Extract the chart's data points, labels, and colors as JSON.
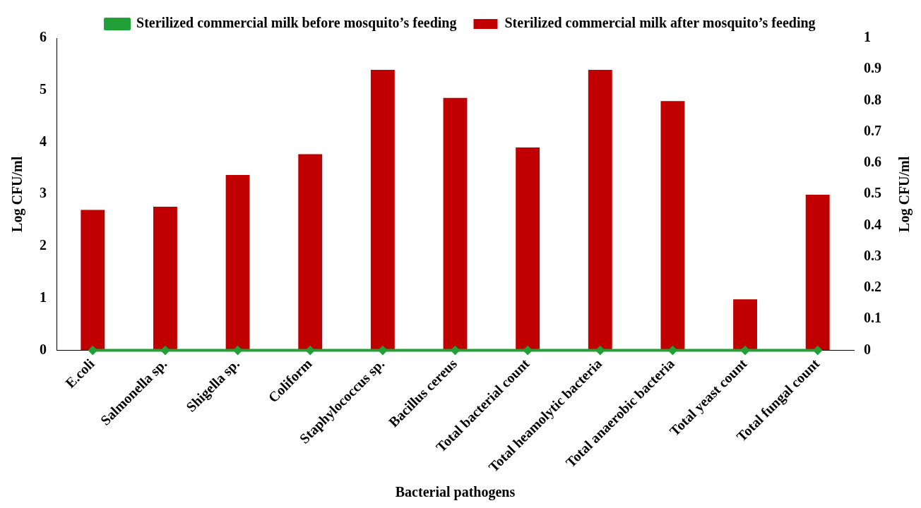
{
  "chart_data": {
    "type": "bar",
    "xlabel": "Bacterial pathogens",
    "ylabel": "Log CFU/ml",
    "y2label": "Log CFU/ml",
    "categories": [
      "E.coli",
      "Salmonella sp.",
      "Shigella sp.",
      "Coliform",
      "Staphylococcus sp.",
      "Bacillus cereus",
      "Total bacterial count",
      "Total heamolytic bacteria",
      "Total anaerobic bacteria",
      "Total yeast count",
      "Total fungal count"
    ],
    "series": [
      {
        "name": "Sterilized commercial milk after mosquito’s feeding",
        "color": "#c00000",
        "values": [
          2.7,
          2.76,
          3.37,
          3.77,
          5.39,
          4.85,
          3.9,
          5.39,
          4.79,
          0.98,
          2.99
        ]
      },
      {
        "name": "Sterilized commercial milk before mosquito’s feeding",
        "type": "line",
        "axis": "y2",
        "color": "#22a038",
        "marker": "diamond",
        "values": [
          0,
          0,
          0,
          0,
          0,
          0,
          0,
          0,
          0,
          0,
          0
        ]
      }
    ],
    "ylim": [
      0,
      6
    ],
    "yticks": [
      0,
      1,
      2,
      3,
      4,
      5,
      6
    ],
    "y2lim": [
      0,
      1
    ],
    "y2ticks": [
      0,
      0.1,
      0.2,
      0.3,
      0.4,
      0.5,
      0.6,
      0.7,
      0.8,
      0.9,
      1
    ],
    "grid": false,
    "legend": "top"
  }
}
